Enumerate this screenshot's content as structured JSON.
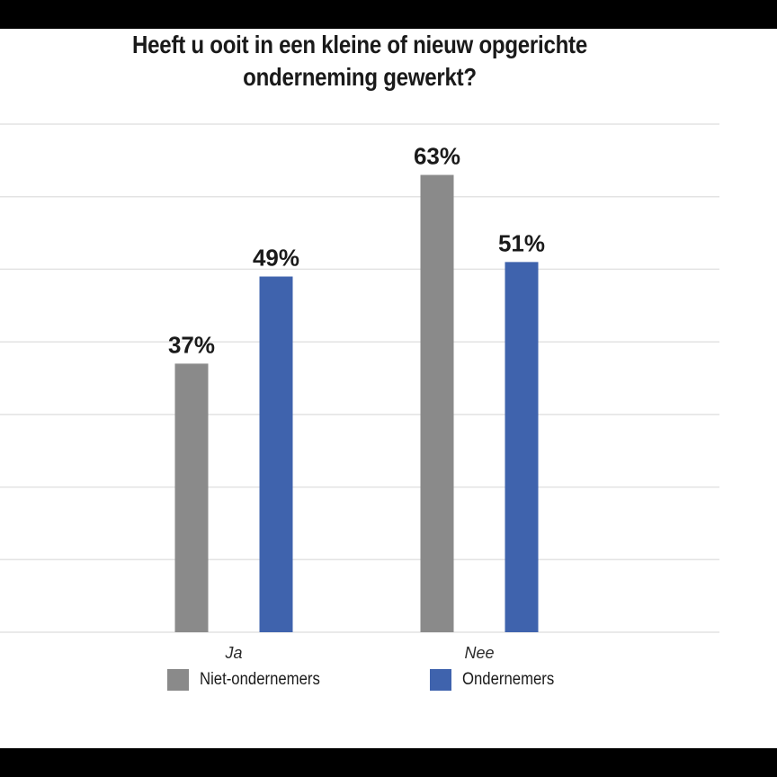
{
  "chart_data": {
    "type": "bar",
    "title_lines": [
      "Heeft u ooit in een kleine of nieuw opgerichte",
      "onderneming gewerkt?"
    ],
    "categories": [
      "Ja",
      "Nee"
    ],
    "series": [
      {
        "name": "Niet-ondernemers",
        "values": [
          37,
          63
        ],
        "labels": [
          "37%",
          "63%"
        ],
        "color": "#8a8a8a"
      },
      {
        "name": "Ondernemers",
        "values": [
          49,
          51
        ],
        "labels": [
          "49%",
          "51%"
        ],
        "color": "#3f63ad"
      }
    ],
    "ylim": [
      0,
      70
    ],
    "grid": true,
    "legend": "bottom"
  }
}
